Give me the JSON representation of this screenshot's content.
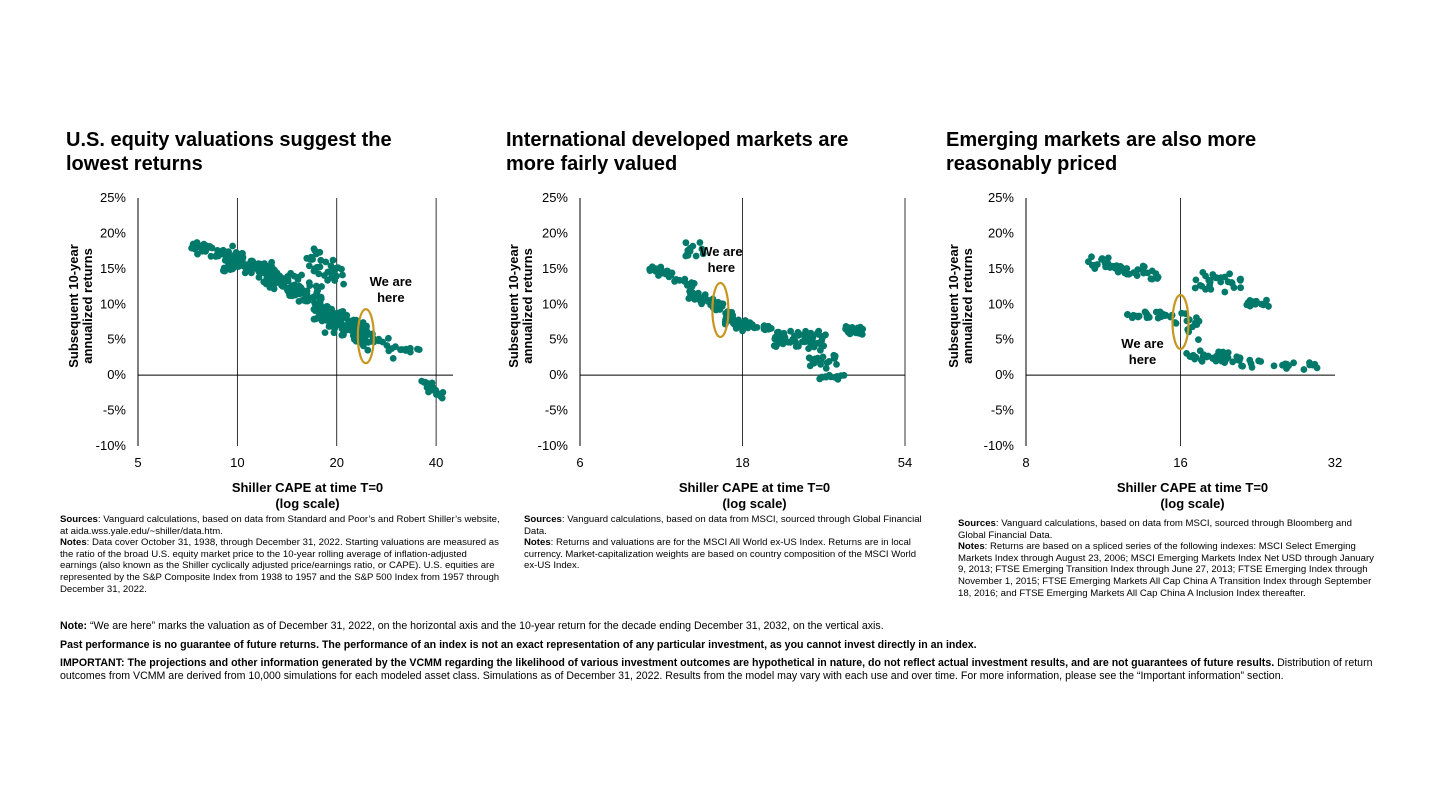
{
  "colors": {
    "dots": "#00796b",
    "callout_ring": "#c8961f",
    "axis": "#000000"
  },
  "chart_data": [
    {
      "type": "scatter",
      "title": "U.S. equity valuations suggest the lowest returns",
      "xlabel": "Shiller CAPE at time T=0\n(log scale)",
      "ylabel": "Subsequent 10-year annualized returns",
      "x_scale": "log",
      "xlim": [
        5,
        45
      ],
      "xticks": [
        5,
        10,
        20,
        40
      ],
      "xtick_labels": [
        "5",
        "10",
        "20",
        "40"
      ],
      "x_gridlines": [
        10,
        20,
        40
      ],
      "ylim": [
        -10,
        25
      ],
      "yticks": [
        -10,
        -5,
        0,
        5,
        10,
        15,
        20,
        25
      ],
      "ytick_labels": [
        "-10%",
        "-5%",
        "0%",
        "5%",
        "10%",
        "15%",
        "20%",
        "25%"
      ],
      "annotation": {
        "text_line1": "We are",
        "text_line2": "here",
        "x": 24.5,
        "y": 5.5
      },
      "clusters": [
        {
          "x_range": [
            7.2,
            10
          ],
          "y_center": 17.5,
          "y_spread": 1.6,
          "count": 45,
          "slope": -1.2
        },
        {
          "x_range": [
            9,
            13
          ],
          "y_center": 15.5,
          "y_spread": 2.2,
          "count": 85,
          "slope": -1.5
        },
        {
          "x_range": [
            12,
            18
          ],
          "y_center": 12.5,
          "y_spread": 2.6,
          "count": 95,
          "slope": -3.0
        },
        {
          "x_range": [
            16,
            21
          ],
          "y_center": 15.5,
          "y_spread": 2.5,
          "count": 35,
          "slope": -3.0
        },
        {
          "x_range": [
            17,
            25
          ],
          "y_center": 7.5,
          "y_spread": 3.0,
          "count": 115,
          "slope": -4.0
        },
        {
          "x_range": [
            22,
            31
          ],
          "y_center": 5.0,
          "y_spread": 2.0,
          "count": 28,
          "slope": -3.0
        },
        {
          "x_range": [
            31,
            36
          ],
          "y_center": 3.5,
          "y_spread": 1.0,
          "count": 8,
          "slope": 0
        },
        {
          "x_range": [
            36,
            42
          ],
          "y_center": -1.8,
          "y_spread": 1.1,
          "count": 22,
          "slope": -2.0
        }
      ]
    },
    {
      "type": "scatter",
      "title": "International developed markets are more fairly valued",
      "xlabel": "Shiller CAPE at time T=0\n(log scale)",
      "ylabel": "Subsequent 10-year annualized returns",
      "x_scale": "log",
      "xlim": [
        6,
        54
      ],
      "xticks": [
        6,
        18,
        54
      ],
      "xtick_labels": [
        "6",
        "18",
        "54"
      ],
      "x_gridlines": [
        18,
        54
      ],
      "ylim": [
        -10,
        25
      ],
      "yticks": [
        -10,
        -5,
        0,
        5,
        10,
        15,
        20,
        25
      ],
      "ytick_labels": [
        "-10%",
        "-5%",
        "0%",
        "5%",
        "10%",
        "15%",
        "20%",
        "25%"
      ],
      "annotation": {
        "text_line1": "We are",
        "text_line2": "here",
        "x": 15.5,
        "y": 9.2
      },
      "clusters": [
        {
          "x_range": [
            9.5,
            13
          ],
          "y_center": 14.0,
          "y_spread": 1.3,
          "count": 30,
          "slope": -2.0
        },
        {
          "x_range": [
            12.2,
            13.8
          ],
          "y_center": 17.5,
          "y_spread": 2.0,
          "count": 12,
          "slope": 0
        },
        {
          "x_range": [
            12.5,
            17
          ],
          "y_center": 10.0,
          "y_spread": 1.5,
          "count": 40,
          "slope": -3.5
        },
        {
          "x_range": [
            16,
            22
          ],
          "y_center": 7.0,
          "y_spread": 1.2,
          "count": 40,
          "slope": -1.0
        },
        {
          "x_range": [
            22,
            32
          ],
          "y_center": 5.0,
          "y_spread": 2.0,
          "count": 60,
          "slope": 0
        },
        {
          "x_range": [
            28,
            34
          ],
          "y_center": 2.0,
          "y_spread": 1.5,
          "count": 20,
          "slope": 0
        },
        {
          "x_range": [
            30,
            36
          ],
          "y_center": -0.3,
          "y_spread": 0.6,
          "count": 12,
          "slope": 0
        },
        {
          "x_range": [
            36,
            41
          ],
          "y_center": 6.3,
          "y_spread": 1.0,
          "count": 22,
          "slope": 0
        }
      ]
    },
    {
      "type": "scatter",
      "title": "Emerging markets are also more reasonably priced",
      "xlabel": "Shiller CAPE at time T=0\n(log scale)",
      "ylabel": "Subsequent 10-year annualized returns",
      "x_scale": "log",
      "xlim": [
        8,
        32
      ],
      "xticks": [
        8,
        16,
        32
      ],
      "xtick_labels": [
        "8",
        "16",
        "32"
      ],
      "x_gridlines": [
        16
      ],
      "ylim": [
        -10,
        25
      ],
      "yticks": [
        -10,
        -5,
        0,
        5,
        10,
        15,
        20,
        25
      ],
      "ytick_labels": [
        "-10%",
        "-5%",
        "0%",
        "5%",
        "10%",
        "15%",
        "20%",
        "25%"
      ],
      "annotation": {
        "text_line1": "We are",
        "text_line2": "here",
        "x": 16.0,
        "y": 7.5
      },
      "clusters": [
        {
          "x_range": [
            10.5,
            14.5
          ],
          "y_center": 15.0,
          "y_spread": 1.5,
          "count": 45,
          "slope": -2.0
        },
        {
          "x_range": [
            12.5,
            15.5
          ],
          "y_center": 8.5,
          "y_spread": 1.2,
          "count": 28,
          "slope": 0
        },
        {
          "x_range": [
            15.5,
            17.5
          ],
          "y_center": 7.0,
          "y_spread": 2.5,
          "count": 14,
          "slope": 0
        },
        {
          "x_range": [
            17,
            21
          ],
          "y_center": 13.0,
          "y_spread": 2.0,
          "count": 28,
          "slope": 0
        },
        {
          "x_range": [
            21.5,
            24.5
          ],
          "y_center": 10.0,
          "y_spread": 1.0,
          "count": 16,
          "slope": 0
        },
        {
          "x_range": [
            16,
            21
          ],
          "y_center": 2.6,
          "y_spread": 1.1,
          "count": 40,
          "slope": -0.5
        },
        {
          "x_range": [
            21,
            30.5
          ],
          "y_center": 1.5,
          "y_spread": 0.8,
          "count": 20,
          "slope": -0.3
        }
      ]
    }
  ],
  "panels": [
    {
      "title_line1": "U.S. equity valuations suggest the",
      "title_line2": "lowest returns",
      "sources_label": "Sources",
      "sources_text": ": Vanguard calculations, based on data from Standard and Poor’s and Robert Shiller’s website, at aida.wss.yale.edu/~shiller/data.htm.",
      "notes_label": "Notes",
      "notes_text": ": Data cover October 31, 1938, through December 31, 2022. Starting valuations are measured as the ratio of the broad U.S. equity market price to the 10-year rolling average of inflation-adjusted earnings (also known as the Shiller cyclically adjusted price/earnings ratio, or CAPE). U.S. equities are represented by the S&P Composite Index from 1938 to 1957 and the S&P 500 Index from 1957 through December 31, 2022."
    },
    {
      "title_line1": "International developed markets are",
      "title_line2": "more fairly valued",
      "sources_label": "Sources",
      "sources_text": ": Vanguard calculations, based on data from MSCI, sourced through Global Financial Data.",
      "notes_label": "Notes",
      "notes_text": ": Returns and valuations are for the MSCI All World ex-US Index. Returns are in local currency. Market-capitalization weights are based on country composition of the MSCI World ex-US Index."
    },
    {
      "title_line1": "Emerging markets are also more",
      "title_line2": "reasonably priced",
      "sources_label": "Sources",
      "sources_text": ": Vanguard calculations, based on data from MSCI, sourced through Bloomberg and Global Financial Data.",
      "notes_label": "Notes",
      "notes_text": ": Returns are based on a spliced series of the following indexes: MSCI Select Emerging Markets Index through August 23, 2006; MSCI Emerging Markets Index Net USD through January 9, 2013; FTSE Emerging Transition Index through June 27, 2013; FTSE Emerging Index through November 1, 2015; FTSE Emerging Markets All Cap China A Transition Index through September 18, 2016; and FTSE Emerging Markets All Cap China A Inclusion Index thereafter."
    }
  ],
  "footer": {
    "note_label": "Note:",
    "note_text": " “We are here” marks the valuation as of December 31, 2022, on the horizontal axis and the 10-year return for the decade ending December 31, 2032, on the vertical axis.",
    "past_performance": "Past performance is no guarantee of future returns. The performance of an index is not an exact representation of any particular investment, as you cannot invest directly in an index.",
    "important_bold": "IMPORTANT: The projections and other information generated by the VCMM regarding the likelihood of various investment outcomes are hypothetical in nature, do not reflect actual investment results, and are not guarantees of future results.",
    "important_text": " Distribution of return outcomes from VCMM are derived from 10,000 simulations for each modeled asset class. Simulations as of December 31, 2022. Results from the model may vary with each use and over time. For more information, please see the “Important information” section."
  }
}
